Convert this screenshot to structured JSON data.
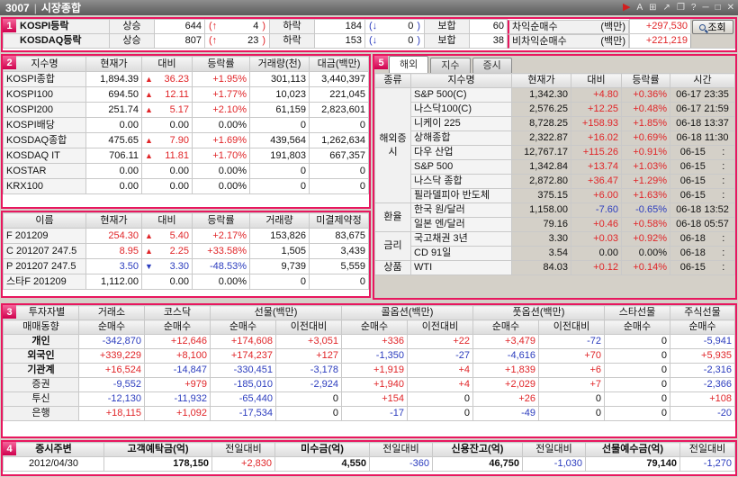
{
  "titlebar": {
    "code": "3007",
    "separator": "|",
    "title": "시장종합",
    "icons": [
      {
        "name": "play-icon",
        "glyph": "▶"
      },
      {
        "name": "font-icon",
        "glyph": "A"
      },
      {
        "name": "add-window-icon",
        "glyph": "⊞"
      },
      {
        "name": "external-link-icon",
        "glyph": "↗"
      },
      {
        "name": "copy-window-icon",
        "glyph": "❐"
      },
      {
        "name": "help-icon",
        "glyph": "?"
      },
      {
        "name": "minimize-icon",
        "glyph": "─"
      },
      {
        "name": "maximize-icon",
        "glyph": "□"
      },
      {
        "name": "close-icon",
        "glyph": "✕"
      }
    ]
  },
  "colors": {
    "up": "#e02528",
    "down": "#2b3cbe",
    "accent": "#e8175f"
  },
  "badges": [
    "1",
    "2",
    "3",
    "4",
    "5"
  ],
  "section1": {
    "paren_open": "(",
    "paren_close": ")",
    "up_arrow": "↑",
    "down_arrow": "↓",
    "rows": [
      {
        "label": "KOSPI등락",
        "rise_label": "상승",
        "rise_count": "644",
        "rise_new": "4",
        "fall_label": "하락",
        "fall_count": "184",
        "fall_new": "0",
        "flat_label": "보합",
        "flat_count": "60"
      },
      {
        "label": "KOSDAQ등락",
        "rise_label": "상승",
        "rise_count": "807",
        "rise_new": "23",
        "fall_label": "하락",
        "fall_count": "153",
        "fall_new": "0",
        "flat_label": "보합",
        "flat_count": "38"
      }
    ],
    "arb_label": "차익순매수",
    "arb_unit": "(백만)",
    "arb_value": "+297,530",
    "nonarb_label": "비차익순매수",
    "nonarb_unit": "(백만)",
    "nonarb_value": "+221,219",
    "search_label": "조회"
  },
  "index_table": {
    "headers": [
      "지수명",
      "현재가",
      "대비",
      "등락률",
      "거래량(천)",
      "대금(백만)"
    ],
    "rows": [
      {
        "name": "KOSPI종합",
        "price": "1,894.39",
        "dir": "up",
        "arrow": "▲",
        "change": "36.23",
        "rate": "+1.95%",
        "volume": "301,113",
        "amount": "3,440,397"
      },
      {
        "name": "KOSPI100",
        "price": "694.50",
        "dir": "up",
        "arrow": "▲",
        "change": "12.11",
        "rate": "+1.77%",
        "volume": "10,023",
        "amount": "221,045"
      },
      {
        "name": "KOSPI200",
        "price": "251.74",
        "dir": "up",
        "arrow": "▲",
        "change": "5.17",
        "rate": "+2.10%",
        "volume": "61,159",
        "amount": "2,823,601"
      },
      {
        "name": "KOSPI배당",
        "price": "0.00",
        "dir": "flat",
        "arrow": "",
        "change": "0.00",
        "rate": "0.00%",
        "volume": "0",
        "amount": "0"
      },
      {
        "name": "KOSDAQ종합",
        "price": "475.65",
        "dir": "up",
        "arrow": "▲",
        "change": "7.90",
        "rate": "+1.69%",
        "volume": "439,564",
        "amount": "1,262,634"
      },
      {
        "name": "KOSDAQ IT",
        "price": "706.11",
        "dir": "up",
        "arrow": "▲",
        "change": "11.81",
        "rate": "+1.70%",
        "volume": "191,803",
        "amount": "667,357"
      },
      {
        "name": "KOSTAR",
        "price": "0.00",
        "dir": "flat",
        "arrow": "",
        "change": "0.00",
        "rate": "0.00%",
        "volume": "0",
        "amount": "0"
      },
      {
        "name": "KRX100",
        "price": "0.00",
        "dir": "flat",
        "arrow": "",
        "change": "0.00",
        "rate": "0.00%",
        "volume": "0",
        "amount": "0"
      }
    ]
  },
  "futures_table": {
    "headers": [
      "이름",
      "현재가",
      "대비",
      "등락률",
      "거래량",
      "미결제약정"
    ],
    "rows": [
      {
        "name": "F 201209",
        "price": "254.30",
        "dir": "up",
        "arrow": "▲",
        "change": "5.40",
        "rate": "+2.17%",
        "volume": "153,826",
        "oi": "83,675"
      },
      {
        "name": "C 201207 247.5",
        "price": "8.95",
        "dir": "up",
        "arrow": "▲",
        "change": "2.25",
        "rate": "+33.58%",
        "volume": "1,505",
        "oi": "3,439"
      },
      {
        "name": "P 201207 247.5",
        "price": "3.50",
        "dir": "down",
        "arrow": "▼",
        "change": "3.30",
        "rate": "-48.53%",
        "volume": "9,739",
        "oi": "5,559"
      },
      {
        "name": "스타F 201209",
        "price": "1,112.00",
        "dir": "flat",
        "arrow": "",
        "change": "0.00",
        "rate": "0.00%",
        "volume": "0",
        "oi": "0"
      }
    ]
  },
  "overseas_panel": {
    "tabs": [
      "해외",
      "지수",
      "증시"
    ],
    "headers": [
      "종류",
      "지수명",
      "현재가",
      "대비",
      "등락률",
      "시간"
    ],
    "groups": [
      {
        "label": "해외증시",
        "span": 8
      },
      {
        "label": "환율",
        "span": 2
      },
      {
        "label": "금리",
        "span": 2
      },
      {
        "label": "상품",
        "span": 1
      }
    ],
    "rows": [
      {
        "name": "S&P 500(C)",
        "price": "1,342.30",
        "change": "+4.80",
        "rate": "+0.36%",
        "time": "06-17 23:35"
      },
      {
        "name": "나스닥100(C)",
        "price": "2,576.25",
        "change": "+12.25",
        "rate": "+0.48%",
        "time": "06-17 21:59"
      },
      {
        "name": "니케이 225",
        "price": "8,728.25",
        "change": "+158.93",
        "rate": "+1.85%",
        "time": "06-18 13:37"
      },
      {
        "name": "상해종합",
        "price": "2,322.87",
        "change": "+16.02",
        "rate": "+0.69%",
        "time": "06-18 11:30"
      },
      {
        "name": "다우 산업",
        "price": "12,767.17",
        "change": "+115.26",
        "rate": "+0.91%",
        "time": "06-15      :"
      },
      {
        "name": "S&P 500",
        "price": "1,342.84",
        "change": "+13.74",
        "rate": "+1.03%",
        "time": "06-15      :"
      },
      {
        "name": "나스닥 종합",
        "price": "2,872.80",
        "change": "+36.47",
        "rate": "+1.29%",
        "time": "06-15      :"
      },
      {
        "name": "필라델피아 반도체",
        "price": "375.15",
        "change": "+6.00",
        "rate": "+1.63%",
        "time": "06-15      :"
      },
      {
        "name": "한국 원/달러",
        "price": "1,158.00",
        "change": "-7.60",
        "rate": "-0.65%",
        "time": "06-18 13:52"
      },
      {
        "name": "일본 엔/달러",
        "price": "79.16",
        "change": "+0.46",
        "rate": "+0.58%",
        "time": "06-18 05:57"
      },
      {
        "name": "국고채권 3년",
        "price": "3.30",
        "change": "+0.03",
        "rate": "+0.92%",
        "time": "06-18      :"
      },
      {
        "name": "CD 91일",
        "price": "3.54",
        "change": "0.00",
        "rate": "0.00%",
        "time": "06-18      :"
      },
      {
        "name": "WTI",
        "price": "84.03",
        "change": "+0.12",
        "rate": "+0.14%",
        "time": "06-15      :"
      }
    ]
  },
  "investor_table": {
    "header1": [
      {
        "label": "투자자별"
      },
      {
        "label": "거래소"
      },
      {
        "label": "코스닥"
      },
      {
        "label": "선물(백만)"
      },
      {
        "label": "콜옵션(백만)"
      },
      {
        "label": "풋옵션(백만)"
      },
      {
        "label": "스타선물"
      },
      {
        "label": "주식선물"
      }
    ],
    "header2_label": "매매동향",
    "header2": [
      "순매수",
      "순매수",
      "순매수",
      "이전대비",
      "순매수",
      "이전대비",
      "순매수",
      "이전대비",
      "순매수",
      "순매수"
    ],
    "rows": [
      {
        "label": "개인",
        "strong": true,
        "values": [
          "-342,870",
          "+12,646",
          "+174,608",
          "+3,051",
          "+336",
          "+22",
          "+3,479",
          "-72",
          "0",
          "-5,941"
        ]
      },
      {
        "label": "외국인",
        "strong": true,
        "values": [
          "+339,229",
          "+8,100",
          "+174,237",
          "+127",
          "-1,350",
          "-27",
          "-4,616",
          "+70",
          "0",
          "+5,935"
        ]
      },
      {
        "label": "기관계",
        "strong": true,
        "values": [
          "+16,524",
          "-14,847",
          "-330,451",
          "-3,178",
          "+1,919",
          "+4",
          "+1,839",
          "+6",
          "0",
          "-2,316"
        ]
      },
      {
        "label": "증권",
        "strong": false,
        "values": [
          "-9,552",
          "+979",
          "-185,010",
          "-2,924",
          "+1,940",
          "+4",
          "+2,029",
          "+7",
          "0",
          "-2,366"
        ]
      },
      {
        "label": "투신",
        "strong": false,
        "values": [
          "-12,130",
          "-11,932",
          "-65,440",
          "0",
          "+154",
          "0",
          "+26",
          "0",
          "0",
          "+108"
        ]
      },
      {
        "label": "은행",
        "strong": false,
        "values": [
          "+18,115",
          "+1,092",
          "-17,534",
          "0",
          "-17",
          "0",
          "-49",
          "0",
          "0",
          "-20"
        ]
      }
    ]
  },
  "market_summary": {
    "title": "증시주변",
    "deposit_label": "고객예탁금(억)",
    "unpaid_label": "미수금(억)",
    "credit_label": "신용잔고(억)",
    "futdeposit_label": "선물예수금(억)",
    "prev_label": "전일대비",
    "date": "2012/04/30",
    "deposit": "178,150",
    "deposit_chg": "+2,830",
    "unpaid": "4,550",
    "unpaid_chg": "-360",
    "credit": "46,750",
    "credit_chg": "-1,030",
    "futdeposit": "79,140",
    "futdeposit_chg": "-1,270"
  }
}
